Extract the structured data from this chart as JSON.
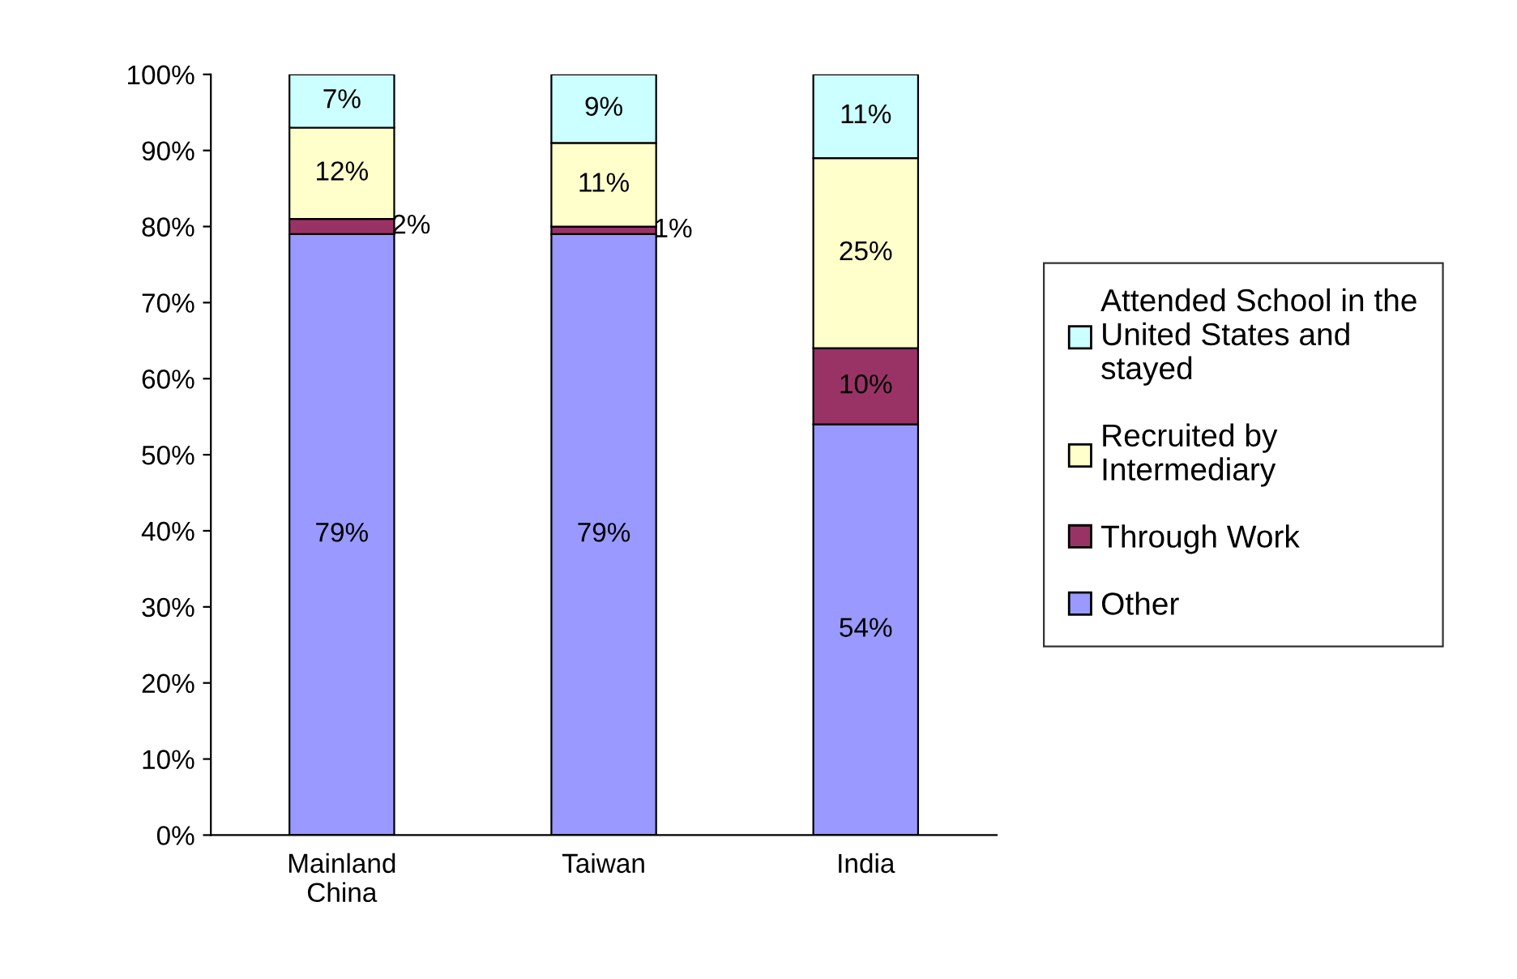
{
  "chart_data": {
    "type": "bar",
    "stacked": true,
    "categories": [
      "Mainland\nChina",
      "Taiwan",
      "India"
    ],
    "series": [
      {
        "name": "Other",
        "color": "#9999ff",
        "values": [
          79,
          79,
          54
        ],
        "value_labels": [
          "79%",
          "79%",
          "54%"
        ]
      },
      {
        "name": "Through Work",
        "color": "#993366",
        "values": [
          2,
          1,
          10
        ],
        "value_labels": [
          "2%",
          "1%",
          "10%"
        ]
      },
      {
        "name": "Recruited by\nIntermediary",
        "color": "#ffffcc",
        "values": [
          12,
          11,
          25
        ],
        "value_labels": [
          "12%",
          "11%",
          "25%"
        ]
      },
      {
        "name": "Attended School in the\nUnited States and\nstayed",
        "color": "#ccffff",
        "values": [
          7,
          9,
          11
        ],
        "value_labels": [
          "7%",
          "9%",
          "11%"
        ]
      }
    ],
    "ylim": [
      0,
      100
    ],
    "yticks": [
      {
        "value": 0,
        "label": "0%"
      },
      {
        "value": 10,
        "label": "10%"
      },
      {
        "value": 20,
        "label": "20%"
      },
      {
        "value": 30,
        "label": "30%"
      },
      {
        "value": 40,
        "label": "40%"
      },
      {
        "value": 50,
        "label": "50%"
      },
      {
        "value": 60,
        "label": "60%"
      },
      {
        "value": 70,
        "label": "70%"
      },
      {
        "value": 80,
        "label": "80%"
      },
      {
        "value": 90,
        "label": "90%"
      },
      {
        "value": 100,
        "label": "100%"
      }
    ],
    "grid": false,
    "legend": "right"
  }
}
